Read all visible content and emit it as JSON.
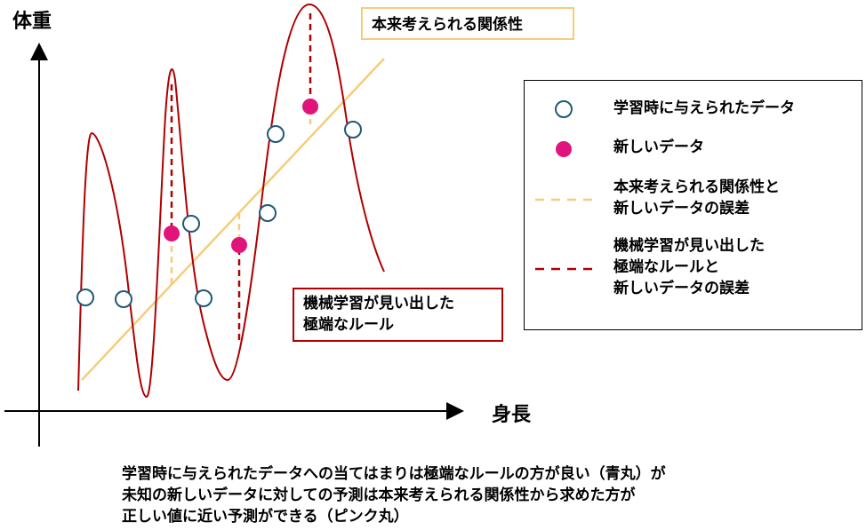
{
  "axes": {
    "y_label": "体重",
    "x_label": "身長"
  },
  "callouts": {
    "true_relation": "本来考えられる関係性",
    "extreme_rule": "機械学習が見い出した\n極端なルール"
  },
  "legend": {
    "items": [
      {
        "marker": "open-circle",
        "label": "学習時に与えられたデータ",
        "color": "#1f5a78"
      },
      {
        "marker": "filled-circle",
        "label": "新しいデータ",
        "color": "#e0147a"
      },
      {
        "marker": "dashed-yellow",
        "label": "本来考えられる関係性と\n新しいデータの誤差",
        "color": "#f5cd7a"
      },
      {
        "marker": "dashed-red",
        "label": "機械学習が見い出した\n極端なルールと\n新しいデータの誤差",
        "color": "#b00000"
      }
    ]
  },
  "caption": {
    "lines": [
      "学習時に与えられたデータへの当てはまりは極端なルールの方が良い（青丸）が",
      "未知の新しいデータに対しての予測は本来考えられる関係性から求めた方が",
      "正しい値に近い予測ができる（ピンク丸）"
    ]
  },
  "colors": {
    "curve": "#b00000",
    "line": "#f5cd7a",
    "training": "#1f5a78",
    "new_data": "#e0147a",
    "axis": "#000000"
  }
}
